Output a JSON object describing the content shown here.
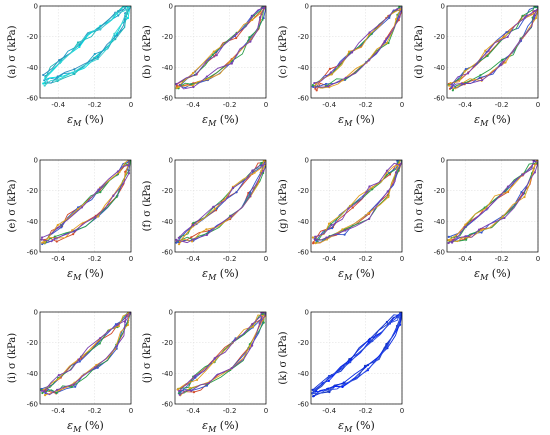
{
  "figure": {
    "ylabel_template": "σ (kPa)",
    "xlabel_main": "ε",
    "xlabel_sub": "M",
    "xlabel_unit": "(%)"
  },
  "chart_data": [
    {
      "type": "line",
      "panel_label": "(a)",
      "xlim": [
        -0.5,
        0
      ],
      "ylim": [
        -60,
        0
      ],
      "xticks": [
        -0.4,
        -0.2,
        0
      ],
      "yticks": [
        -60,
        -40,
        -20,
        0
      ],
      "grid": true,
      "series": [
        {
          "colors": [
            "#1aa0c8",
            "#00e0e0",
            "#20b8b8",
            "#3090c0",
            "#40d0d0"
          ]
        }
      ],
      "loop": {
        "upper": [
          [
            -0.47,
            -46
          ],
          [
            -0.4,
            -38
          ],
          [
            -0.3,
            -27
          ],
          [
            -0.2,
            -16
          ],
          [
            -0.1,
            -7
          ],
          [
            -0.03,
            -1
          ],
          [
            0,
            0
          ]
        ],
        "lower": [
          [
            0,
            0
          ],
          [
            -0.05,
            -14
          ],
          [
            -0.15,
            -30
          ],
          [
            -0.3,
            -42
          ],
          [
            -0.4,
            -47
          ],
          [
            -0.47,
            -50
          ]
        ]
      }
    },
    {
      "type": "line",
      "panel_label": "(b)",
      "xlim": [
        -0.5,
        0
      ],
      "ylim": [
        -60,
        0
      ],
      "xticks": [
        -0.4,
        -0.2,
        0
      ],
      "yticks": [
        -60,
        -40,
        -20,
        0
      ],
      "grid": true,
      "series": [
        {
          "colors": [
            "#d24b2a",
            "#3355cc",
            "#2a9f4a",
            "#e0a020",
            "#7a3fb0"
          ]
        }
      ],
      "loop": {
        "upper": [
          [
            -0.48,
            -52
          ],
          [
            -0.4,
            -44
          ],
          [
            -0.3,
            -33
          ],
          [
            -0.2,
            -22
          ],
          [
            -0.1,
            -11
          ],
          [
            -0.03,
            -3
          ],
          [
            0,
            0
          ]
        ],
        "lower": [
          [
            0,
            0
          ],
          [
            -0.05,
            -16
          ],
          [
            -0.15,
            -33
          ],
          [
            -0.3,
            -46
          ],
          [
            -0.4,
            -51
          ],
          [
            -0.48,
            -53
          ]
        ]
      }
    },
    {
      "type": "line",
      "panel_label": "(c)",
      "xlim": [
        -0.5,
        0
      ],
      "ylim": [
        -60,
        0
      ],
      "xticks": [
        -0.4,
        -0.2,
        0
      ],
      "yticks": [
        -60,
        -40,
        -20,
        0
      ],
      "grid": true,
      "series": [
        {
          "colors": [
            "#d24b2a",
            "#3355cc",
            "#2a9f4a",
            "#e0a020",
            "#7a3fb0"
          ]
        }
      ],
      "loop": {
        "upper": [
          [
            -0.48,
            -52
          ],
          [
            -0.4,
            -44
          ],
          [
            -0.3,
            -33
          ],
          [
            -0.2,
            -22
          ],
          [
            -0.1,
            -11
          ],
          [
            -0.03,
            -3
          ],
          [
            0,
            0
          ]
        ],
        "lower": [
          [
            0,
            0
          ],
          [
            -0.05,
            -16
          ],
          [
            -0.15,
            -33
          ],
          [
            -0.3,
            -46
          ],
          [
            -0.4,
            -51
          ],
          [
            -0.48,
            -53
          ]
        ]
      }
    },
    {
      "type": "line",
      "panel_label": "(d)",
      "xlim": [
        -0.5,
        0
      ],
      "ylim": [
        -60,
        0
      ],
      "xticks": [
        -0.4,
        -0.2,
        0
      ],
      "yticks": [
        -60,
        -40,
        -20,
        0
      ],
      "grid": true,
      "series": [
        {
          "colors": [
            "#d24b2a",
            "#3355cc",
            "#2a9f4a",
            "#e0a020",
            "#7a3fb0"
          ]
        }
      ],
      "loop": {
        "upper": [
          [
            -0.48,
            -52
          ],
          [
            -0.4,
            -44
          ],
          [
            -0.3,
            -33
          ],
          [
            -0.2,
            -22
          ],
          [
            -0.1,
            -11
          ],
          [
            -0.03,
            -3
          ],
          [
            0,
            0
          ]
        ],
        "lower": [
          [
            0,
            0
          ],
          [
            -0.05,
            -16
          ],
          [
            -0.15,
            -33
          ],
          [
            -0.3,
            -46
          ],
          [
            -0.4,
            -51
          ],
          [
            -0.48,
            -53
          ]
        ]
      }
    },
    {
      "type": "line",
      "panel_label": "(e)",
      "xlim": [
        -0.5,
        0
      ],
      "ylim": [
        -60,
        0
      ],
      "xticks": [
        -0.4,
        -0.2,
        0
      ],
      "yticks": [
        -60,
        -40,
        -20,
        0
      ],
      "grid": true,
      "series": [
        {
          "colors": [
            "#d24b2a",
            "#3355cc",
            "#2a9f4a",
            "#e0a020",
            "#7a3fb0"
          ]
        }
      ],
      "loop": {
        "upper": [
          [
            -0.48,
            -52
          ],
          [
            -0.4,
            -44
          ],
          [
            -0.3,
            -33
          ],
          [
            -0.2,
            -22
          ],
          [
            -0.1,
            -11
          ],
          [
            -0.03,
            -3
          ],
          [
            0,
            0
          ]
        ],
        "lower": [
          [
            0,
            0
          ],
          [
            -0.05,
            -16
          ],
          [
            -0.15,
            -33
          ],
          [
            -0.3,
            -46
          ],
          [
            -0.4,
            -51
          ],
          [
            -0.48,
            -53
          ]
        ]
      }
    },
    {
      "type": "line",
      "panel_label": "(f)",
      "xlim": [
        -0.5,
        0
      ],
      "ylim": [
        -60,
        0
      ],
      "xticks": [
        -0.4,
        -0.2,
        0
      ],
      "yticks": [
        -60,
        -40,
        -20,
        0
      ],
      "grid": true,
      "series": [
        {
          "colors": [
            "#d24b2a",
            "#3355cc",
            "#2a9f4a",
            "#e0a020",
            "#7a3fb0"
          ]
        }
      ],
      "loop": {
        "upper": [
          [
            -0.48,
            -52
          ],
          [
            -0.4,
            -44
          ],
          [
            -0.3,
            -33
          ],
          [
            -0.2,
            -22
          ],
          [
            -0.1,
            -11
          ],
          [
            -0.03,
            -3
          ],
          [
            0,
            0
          ]
        ],
        "lower": [
          [
            0,
            0
          ],
          [
            -0.05,
            -16
          ],
          [
            -0.15,
            -33
          ],
          [
            -0.3,
            -46
          ],
          [
            -0.4,
            -51
          ],
          [
            -0.48,
            -53
          ]
        ]
      }
    },
    {
      "type": "line",
      "panel_label": "(g)",
      "xlim": [
        -0.5,
        0
      ],
      "ylim": [
        -60,
        0
      ],
      "xticks": [
        -0.4,
        -0.2,
        0
      ],
      "yticks": [
        -60,
        -40,
        -20,
        0
      ],
      "grid": true,
      "series": [
        {
          "colors": [
            "#d24b2a",
            "#3355cc",
            "#2a9f4a",
            "#e0a020",
            "#7a3fb0"
          ]
        }
      ],
      "loop": {
        "upper": [
          [
            -0.48,
            -52
          ],
          [
            -0.4,
            -44
          ],
          [
            -0.3,
            -33
          ],
          [
            -0.2,
            -22
          ],
          [
            -0.1,
            -11
          ],
          [
            -0.03,
            -3
          ],
          [
            0,
            0
          ]
        ],
        "lower": [
          [
            0,
            0
          ],
          [
            -0.05,
            -16
          ],
          [
            -0.15,
            -33
          ],
          [
            -0.3,
            -46
          ],
          [
            -0.4,
            -51
          ],
          [
            -0.48,
            -53
          ]
        ]
      }
    },
    {
      "type": "line",
      "panel_label": "(h)",
      "xlim": [
        -0.5,
        0
      ],
      "ylim": [
        -60,
        0
      ],
      "xticks": [
        -0.4,
        -0.2,
        0
      ],
      "yticks": [
        -60,
        -40,
        -20,
        0
      ],
      "grid": true,
      "series": [
        {
          "colors": [
            "#d24b2a",
            "#3355cc",
            "#2a9f4a",
            "#e0a020",
            "#7a3fb0"
          ]
        }
      ],
      "loop": {
        "upper": [
          [
            -0.48,
            -52
          ],
          [
            -0.4,
            -44
          ],
          [
            -0.3,
            -33
          ],
          [
            -0.2,
            -22
          ],
          [
            -0.1,
            -11
          ],
          [
            -0.03,
            -3
          ],
          [
            0,
            0
          ]
        ],
        "lower": [
          [
            0,
            0
          ],
          [
            -0.05,
            -16
          ],
          [
            -0.15,
            -33
          ],
          [
            -0.3,
            -46
          ],
          [
            -0.4,
            -51
          ],
          [
            -0.48,
            -53
          ]
        ]
      }
    },
    {
      "type": "line",
      "panel_label": "(i)",
      "xlim": [
        -0.5,
        0
      ],
      "ylim": [
        -60,
        0
      ],
      "xticks": [
        -0.4,
        -0.2,
        0
      ],
      "yticks": [
        -60,
        -40,
        -20,
        0
      ],
      "grid": true,
      "series": [
        {
          "colors": [
            "#d24b2a",
            "#3355cc",
            "#2a9f4a",
            "#e0a020",
            "#7a3fb0"
          ]
        }
      ],
      "loop": {
        "upper": [
          [
            -0.48,
            -52
          ],
          [
            -0.4,
            -44
          ],
          [
            -0.3,
            -33
          ],
          [
            -0.2,
            -22
          ],
          [
            -0.1,
            -11
          ],
          [
            -0.03,
            -3
          ],
          [
            0,
            0
          ]
        ],
        "lower": [
          [
            0,
            0
          ],
          [
            -0.05,
            -16
          ],
          [
            -0.15,
            -33
          ],
          [
            -0.3,
            -46
          ],
          [
            -0.4,
            -51
          ],
          [
            -0.48,
            -53
          ]
        ]
      }
    },
    {
      "type": "line",
      "panel_label": "(j)",
      "xlim": [
        -0.5,
        0
      ],
      "ylim": [
        -60,
        0
      ],
      "xticks": [
        -0.4,
        -0.2,
        0
      ],
      "yticks": [
        -60,
        -40,
        -20,
        0
      ],
      "grid": true,
      "series": [
        {
          "colors": [
            "#d24b2a",
            "#3355cc",
            "#2a9f4a",
            "#e0a020",
            "#7a3fb0"
          ]
        }
      ],
      "loop": {
        "upper": [
          [
            -0.48,
            -52
          ],
          [
            -0.4,
            -44
          ],
          [
            -0.3,
            -33
          ],
          [
            -0.2,
            -22
          ],
          [
            -0.1,
            -11
          ],
          [
            -0.03,
            -3
          ],
          [
            0,
            0
          ]
        ],
        "lower": [
          [
            0,
            0
          ],
          [
            -0.05,
            -16
          ],
          [
            -0.15,
            -33
          ],
          [
            -0.3,
            -46
          ],
          [
            -0.4,
            -51
          ],
          [
            -0.48,
            -53
          ]
        ]
      }
    },
    {
      "type": "line",
      "panel_label": "(k)",
      "xlim": [
        -0.5,
        0
      ],
      "ylim": [
        -60,
        0
      ],
      "xticks": [
        -0.4,
        -0.2,
        0
      ],
      "yticks": [
        -60,
        -40,
        -20,
        0
      ],
      "grid": true,
      "series": [
        {
          "colors": [
            "#1030d0",
            "#0020ff",
            "#2040c0",
            "#0a2ae0",
            "#3050e0"
          ]
        }
      ],
      "loop": {
        "upper": [
          [
            -0.48,
            -52
          ],
          [
            -0.4,
            -44
          ],
          [
            -0.3,
            -33
          ],
          [
            -0.2,
            -22
          ],
          [
            -0.1,
            -11
          ],
          [
            -0.03,
            -3
          ],
          [
            0,
            0
          ]
        ],
        "lower": [
          [
            0,
            0
          ],
          [
            -0.05,
            -16
          ],
          [
            -0.15,
            -33
          ],
          [
            -0.3,
            -46
          ],
          [
            -0.4,
            -51
          ],
          [
            -0.48,
            -53
          ]
        ]
      }
    }
  ]
}
